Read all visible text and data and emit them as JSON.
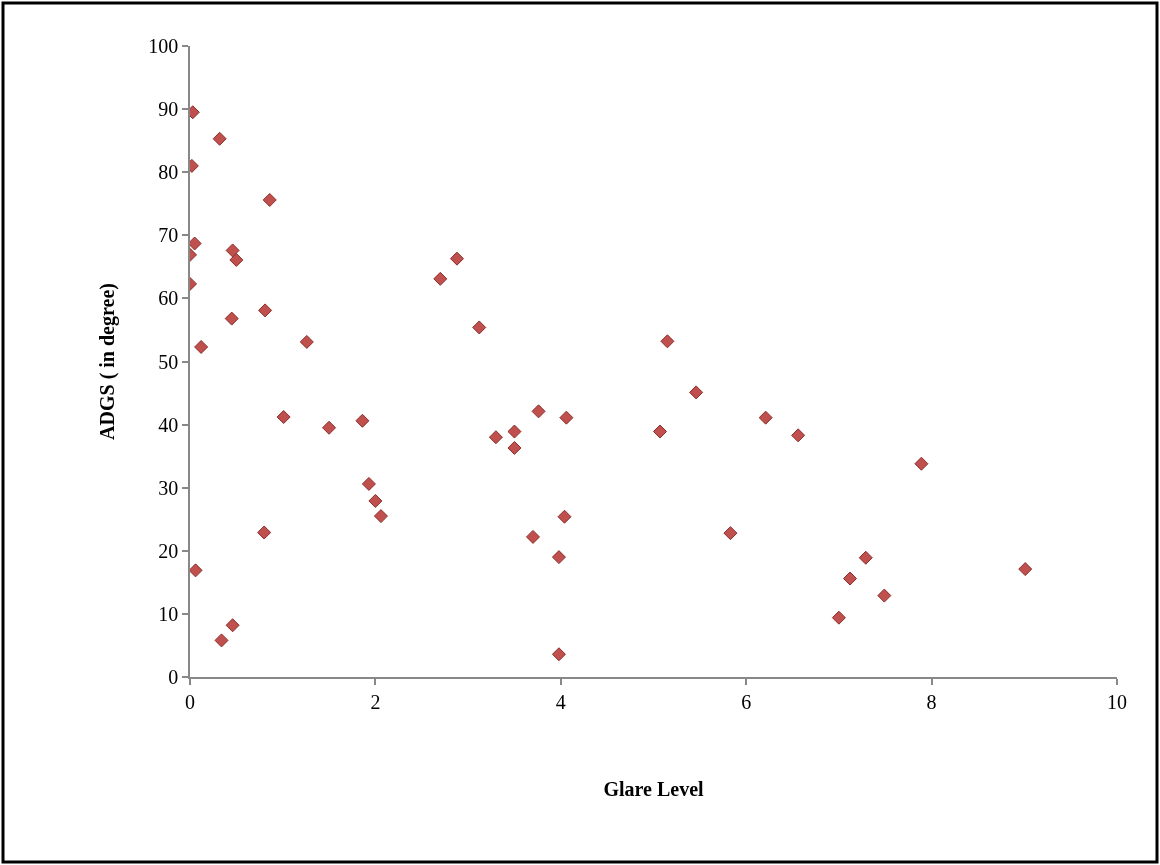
{
  "chart_data": {
    "type": "scatter",
    "xlabel": "Glare Level",
    "ylabel": "ADGS ( in degree)",
    "x": [
      0.03,
      0.32,
      0.02,
      0.86,
      0.05,
      0.0,
      0.0,
      0.46,
      0.5,
      0.45,
      0.81,
      2.7,
      2.88,
      3.12,
      0.12,
      1.26,
      1.01,
      1.5,
      1.86,
      1.93,
      2.0,
      2.06,
      0.8,
      0.06,
      0.34,
      0.46,
      5.15,
      5.46,
      3.76,
      4.06,
      6.21,
      6.56,
      3.3,
      3.5,
      3.5,
      5.07,
      4.04,
      3.7,
      3.98,
      5.83,
      3.98,
      7.89,
      7.29,
      7.12,
      7.49,
      7.0,
      9.01
    ],
    "values": [
      89.5,
      85.3,
      81.0,
      75.6,
      68.7,
      66.9,
      62.3,
      67.6,
      66.1,
      56.8,
      58.1,
      63.1,
      66.3,
      55.4,
      52.3,
      53.1,
      41.2,
      39.5,
      40.6,
      30.6,
      27.9,
      25.5,
      22.9,
      16.9,
      5.8,
      8.2,
      53.2,
      45.1,
      42.1,
      41.1,
      41.1,
      38.3,
      38.0,
      38.9,
      36.3,
      38.9,
      25.4,
      22.2,
      19.0,
      22.8,
      3.6,
      33.8,
      18.9,
      15.6,
      12.9,
      9.4,
      17.1
    ],
    "color": "#c0504d",
    "marker": "diamond",
    "xlim": [
      0,
      10
    ],
    "xticks": [
      0,
      2,
      4,
      6,
      8,
      10
    ],
    "ylim": [
      0,
      100
    ],
    "yticks": [
      0,
      10,
      20,
      30,
      40,
      50,
      60,
      70,
      80,
      90,
      100
    ]
  }
}
